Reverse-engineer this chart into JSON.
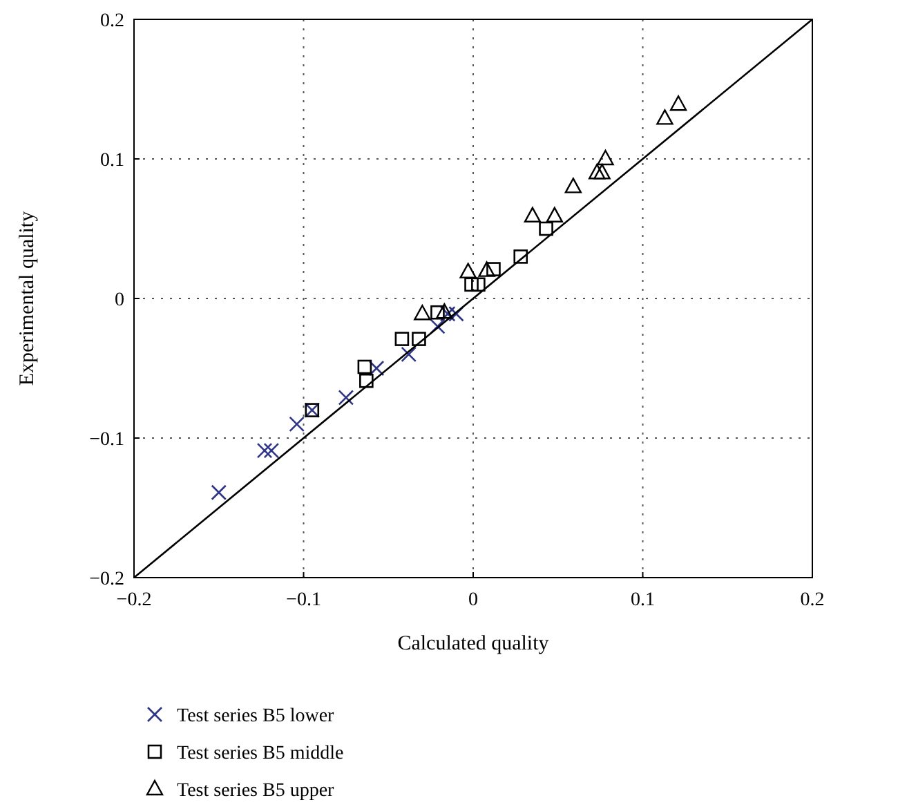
{
  "chart_data": {
    "type": "scatter",
    "xlabel": "Calculated quality",
    "ylabel": "Experimental quality",
    "xlim": [
      -0.2,
      0.2
    ],
    "ylim": [
      -0.2,
      0.2
    ],
    "xticks": [
      {
        "value": -0.2,
        "label": "−0.2"
      },
      {
        "value": -0.1,
        "label": "−0.1"
      },
      0,
      0.1,
      0.2
    ],
    "yticks": [
      {
        "value": -0.2,
        "label": "−0.2"
      },
      {
        "value": -0.1,
        "label": "−0.1"
      },
      0,
      0.1,
      0.2
    ],
    "grid": true,
    "legend": "bottom",
    "series": [
      {
        "name": "Test series B5 lower",
        "color": "#2e3586",
        "marker": "cross",
        "x": [
          -0.15,
          -0.123,
          -0.119,
          -0.104,
          -0.095,
          -0.075,
          -0.057,
          -0.038,
          -0.021,
          -0.015,
          -0.01
        ],
        "values": [
          -0.139,
          -0.109,
          -0.109,
          -0.09,
          -0.08,
          -0.071,
          -0.05,
          -0.04,
          -0.02,
          -0.011,
          -0.011
        ]
      },
      {
        "name": "Test series B5 middle",
        "color": "#000000",
        "marker": "square",
        "x": [
          -0.095,
          -0.064,
          -0.063,
          -0.042,
          -0.032,
          -0.021,
          -0.001,
          0.003,
          0.012,
          0.028,
          0.043
        ],
        "values": [
          -0.08,
          -0.049,
          -0.059,
          -0.029,
          -0.029,
          -0.01,
          0.01,
          0.01,
          0.021,
          0.03,
          0.05
        ]
      },
      {
        "name": "Test series B5 upper",
        "color": "#000000",
        "marker": "triangle",
        "x": [
          -0.03,
          -0.017,
          -0.003,
          0.008,
          0.035,
          0.048,
          0.059,
          0.073,
          0.076,
          0.078,
          0.113,
          0.121
        ],
        "values": [
          -0.011,
          -0.01,
          0.019,
          0.02,
          0.059,
          0.059,
          0.08,
          0.09,
          0.09,
          0.1,
          0.129,
          0.139
        ]
      },
      {
        "type": "line",
        "color": "#000000",
        "line_style": "solid",
        "x": [
          -0.2,
          0.2
        ],
        "values": [
          -0.2,
          0.2
        ]
      }
    ]
  }
}
